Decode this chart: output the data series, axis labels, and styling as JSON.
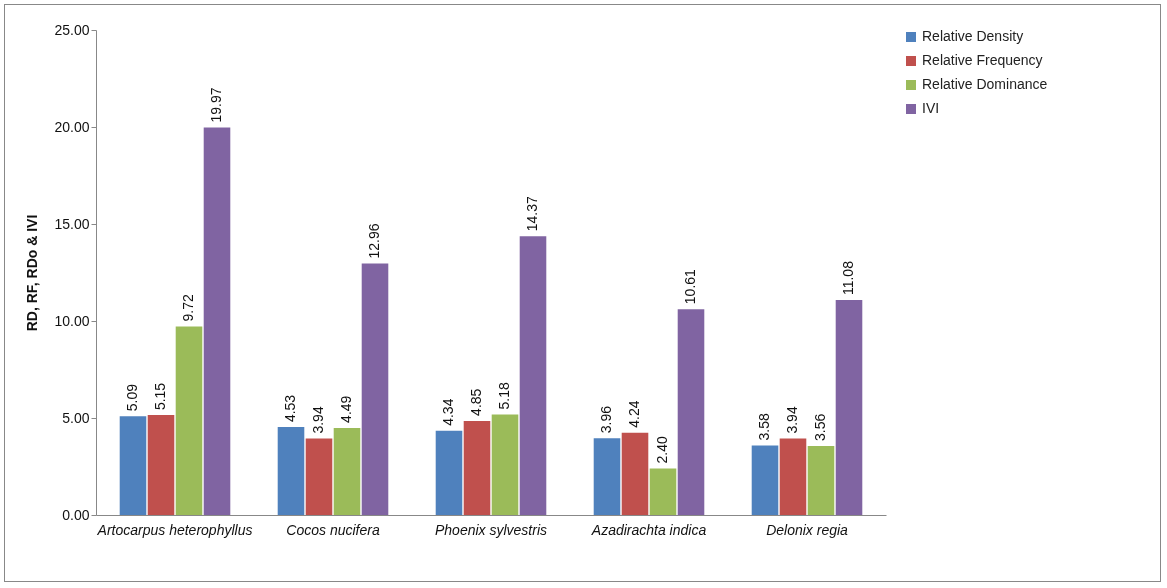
{
  "chart_data": {
    "type": "bar",
    "ylabel": "RD, RF, RDo & IVI",
    "categories": [
      "Artocarpus heterophyllus",
      "Cocos nucifera",
      "Phoenix sylvestris",
      "Azadirachta indica",
      "Delonix regia"
    ],
    "series": [
      {
        "name": "Relative Density",
        "color": "#4f81bd",
        "values": [
          5.09,
          4.53,
          4.34,
          3.96,
          3.58
        ]
      },
      {
        "name": "Relative Frequency",
        "color": "#c0504d",
        "values": [
          5.15,
          3.94,
          4.85,
          4.24,
          3.94
        ]
      },
      {
        "name": "Relative Dominance",
        "color": "#9bbb59",
        "values": [
          9.72,
          4.49,
          5.18,
          2.4,
          3.56
        ],
        "value_labels": [
          "9.72",
          "4.49",
          "5.18",
          "2.40",
          "3.56"
        ]
      },
      {
        "name": "IVI",
        "color": "#8064a2",
        "values": [
          19.97,
          12.96,
          14.37,
          10.61,
          11.08
        ]
      }
    ],
    "ylim": [
      0,
      25
    ],
    "yticks": [
      {
        "value": 0,
        "label": "0.00"
      },
      {
        "value": 5,
        "label": "5.00"
      },
      {
        "value": 10,
        "label": "10.00"
      },
      {
        "value": 15,
        "label": "15.00"
      },
      {
        "value": 20,
        "label": "20.00"
      },
      {
        "value": 25,
        "label": "25.00"
      }
    ],
    "grid": false,
    "legend": "right",
    "data_labels": true
  }
}
